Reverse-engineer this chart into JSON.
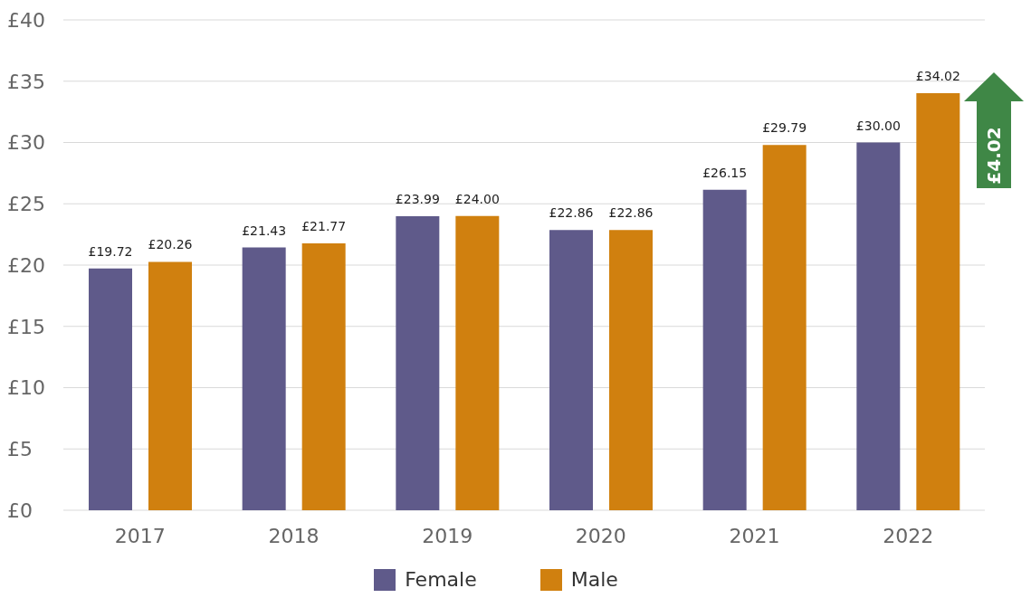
{
  "chart_data": {
    "type": "bar",
    "categories": [
      "2017",
      "2018",
      "2019",
      "2020",
      "2021",
      "2022"
    ],
    "series": [
      {
        "name": "Female",
        "color": "#5f5a8a",
        "values": [
          19.72,
          21.43,
          23.99,
          22.86,
          26.15,
          30.0
        ],
        "value_labels": [
          "£19.72",
          "£21.43",
          "£23.99",
          "£22.86",
          "£26.15",
          "£30.00"
        ]
      },
      {
        "name": "Male",
        "color": "#d0800f",
        "values": [
          20.26,
          21.77,
          24.0,
          22.86,
          29.79,
          34.02
        ],
        "value_labels": [
          "£20.26",
          "£21.77",
          "£24.00",
          "£22.86",
          "£29.79",
          "£34.02"
        ]
      }
    ],
    "ylim": [
      0,
      40
    ],
    "yticks": [
      {
        "value": 0,
        "label": "£0"
      },
      {
        "value": 5,
        "label": "£5"
      },
      {
        "value": 10,
        "label": "£10"
      },
      {
        "value": 15,
        "label": "£15"
      },
      {
        "value": 20,
        "label": "£20"
      },
      {
        "value": 25,
        "label": "£25"
      },
      {
        "value": 30,
        "label": "£30"
      },
      {
        "value": 35,
        "label": "£35"
      },
      {
        "value": 40,
        "label": "£40"
      }
    ],
    "grid": "y",
    "legend": "bottom",
    "annotations": [
      "£4.02"
    ]
  }
}
